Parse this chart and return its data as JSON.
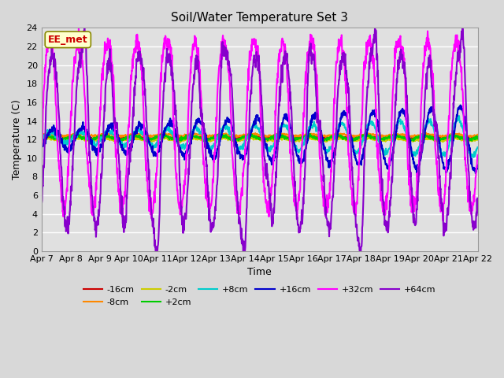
{
  "title": "Soil/Water Temperature Set 3",
  "xlabel": "Time",
  "ylabel": "Temperature (C)",
  "ylim": [
    0,
    24
  ],
  "xlim": [
    0,
    15
  ],
  "x_tick_labels": [
    "Apr 7",
    "Apr 8",
    "Apr 9",
    "Apr 10",
    "Apr 11",
    "Apr 12",
    "Apr 13",
    "Apr 14",
    "Apr 15",
    "Apr 16",
    "Apr 17",
    "Apr 18",
    "Apr 19",
    "Apr 20",
    "Apr 21",
    "Apr 22"
  ],
  "series": {
    "-16cm": {
      "color": "#cc0000",
      "lw": 1.5
    },
    "-8cm": {
      "color": "#ff8800",
      "lw": 1.5
    },
    "-2cm": {
      "color": "#cccc00",
      "lw": 1.5
    },
    "+2cm": {
      "color": "#00cc00",
      "lw": 1.5
    },
    "+8cm": {
      "color": "#00cccc",
      "lw": 1.5
    },
    "+16cm": {
      "color": "#0000cc",
      "lw": 1.5
    },
    "+32cm": {
      "color": "#ff00ff",
      "lw": 1.5
    },
    "+64cm": {
      "color": "#8800cc",
      "lw": 1.5
    }
  },
  "annotation_text": "EE_met",
  "annotation_color": "#cc0000",
  "annotation_bg": "#ffffcc",
  "fig_bg": "#d8d8d8",
  "plot_bg": "#e0e0e0"
}
